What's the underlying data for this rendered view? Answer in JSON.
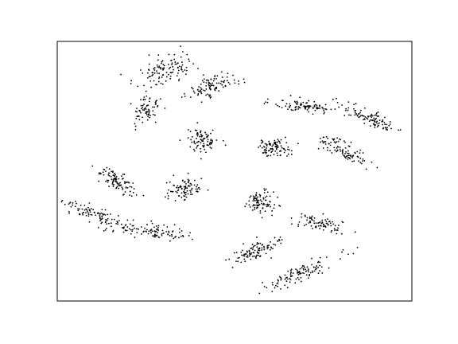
{
  "chart_data": {
    "type": "scatter",
    "title": "",
    "xlabel": "",
    "ylabel": "",
    "xlim": [
      0,
      1
    ],
    "ylim": [
      0,
      1
    ],
    "x_ticks": [],
    "y_ticks": [],
    "grid": false,
    "legend": "none",
    "marker_color": "#000000",
    "series": [
      {
        "clusters": [
          {
            "cx": 0.3,
            "cy": 0.89,
            "sx": 0.045,
            "sy": 0.028,
            "angle": 35,
            "n": 110
          },
          {
            "cx": 0.25,
            "cy": 0.74,
            "sx": 0.03,
            "sy": 0.018,
            "angle": 65,
            "n": 75
          },
          {
            "cx": 0.44,
            "cy": 0.83,
            "sx": 0.04,
            "sy": 0.018,
            "angle": 28,
            "n": 100
          },
          {
            "cx": 0.7,
            "cy": 0.75,
            "sx": 0.045,
            "sy": 0.012,
            "angle": -10,
            "n": 100
          },
          {
            "cx": 0.89,
            "cy": 0.7,
            "sx": 0.05,
            "sy": 0.014,
            "angle": -28,
            "n": 100
          },
          {
            "cx": 0.41,
            "cy": 0.62,
            "sx": 0.022,
            "sy": 0.022,
            "angle": 0,
            "n": 90
          },
          {
            "cx": 0.61,
            "cy": 0.59,
            "sx": 0.024,
            "sy": 0.016,
            "angle": 0,
            "n": 90
          },
          {
            "cx": 0.81,
            "cy": 0.58,
            "sx": 0.04,
            "sy": 0.016,
            "angle": -38,
            "n": 100
          },
          {
            "cx": 0.17,
            "cy": 0.46,
            "sx": 0.04,
            "sy": 0.013,
            "angle": -45,
            "n": 100
          },
          {
            "cx": 0.36,
            "cy": 0.43,
            "sx": 0.025,
            "sy": 0.022,
            "angle": 0,
            "n": 90
          },
          {
            "cx": 0.57,
            "cy": 0.38,
            "sx": 0.02,
            "sy": 0.022,
            "angle": 0,
            "n": 90
          },
          {
            "cx": 0.11,
            "cy": 0.33,
            "sx": 0.05,
            "sy": 0.014,
            "angle": -30,
            "n": 100
          },
          {
            "cx": 0.27,
            "cy": 0.27,
            "sx": 0.055,
            "sy": 0.014,
            "angle": -10,
            "n": 100
          },
          {
            "cx": 0.74,
            "cy": 0.3,
            "sx": 0.014,
            "sy": 0.035,
            "angle": 75,
            "n": 80
          },
          {
            "cx": 0.56,
            "cy": 0.19,
            "sx": 0.045,
            "sy": 0.014,
            "angle": 30,
            "n": 100
          },
          {
            "cx": 0.69,
            "cy": 0.11,
            "sx": 0.06,
            "sy": 0.012,
            "angle": 30,
            "n": 110
          }
        ]
      }
    ]
  }
}
